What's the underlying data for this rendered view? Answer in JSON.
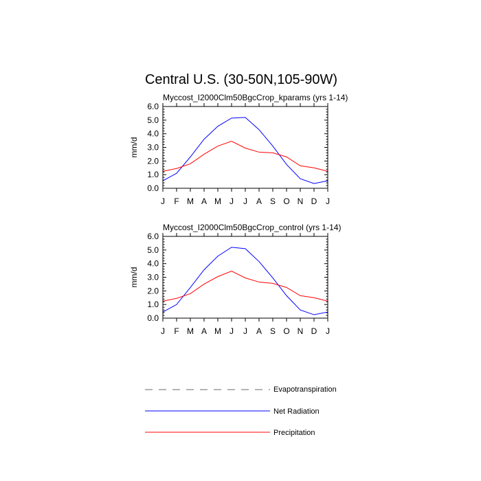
{
  "title": "Central U.S. (30-50N,105-90W)",
  "colors": {
    "net_radiation": "#0000ff",
    "precipitation": "#ff0000",
    "evapotranspiration": "#888888",
    "axes": "#000000"
  },
  "legend": {
    "items": [
      {
        "label": "Evapotranspiration",
        "style": "dashed",
        "color": "#888888"
      },
      {
        "label": "Net Radiation",
        "style": "solid",
        "color": "#0000ff"
      },
      {
        "label": "Precipitation",
        "style": "solid",
        "color": "#ff0000"
      }
    ]
  },
  "chart_data": [
    {
      "type": "line",
      "title": "Myccost_I2000Clm50BgcCrop_kparams (yrs 1-14)",
      "xlabel": "",
      "ylabel": "mm/d",
      "categories": [
        "J",
        "F",
        "M",
        "A",
        "M",
        "J",
        "J",
        "A",
        "S",
        "O",
        "N",
        "D",
        "J"
      ],
      "ylim": [
        0,
        6
      ],
      "yticks": [
        "0.0",
        "1.0",
        "2.0",
        "3.0",
        "4.0",
        "5.0",
        "6.0"
      ],
      "grid": false,
      "series": [
        {
          "name": "Net Radiation",
          "color": "#0000ff",
          "values": [
            0.55,
            1.1,
            2.3,
            3.6,
            4.55,
            5.15,
            5.2,
            4.3,
            3.1,
            1.75,
            0.7,
            0.35,
            0.55
          ]
        },
        {
          "name": "Precipitation",
          "color": "#ff0000",
          "values": [
            1.25,
            1.45,
            1.8,
            2.5,
            3.1,
            3.45,
            2.95,
            2.65,
            2.6,
            2.3,
            1.65,
            1.5,
            1.25
          ]
        }
      ]
    },
    {
      "type": "line",
      "title": "Myccost_I2000Clm50BgcCrop_control (yrs 1-14)",
      "xlabel": "",
      "ylabel": "mm/d",
      "categories": [
        "J",
        "F",
        "M",
        "A",
        "M",
        "J",
        "J",
        "A",
        "S",
        "O",
        "N",
        "D",
        "J"
      ],
      "ylim": [
        0,
        6
      ],
      "yticks": [
        "0.0",
        "1.0",
        "2.0",
        "3.0",
        "4.0",
        "5.0",
        "6.0"
      ],
      "grid": false,
      "series": [
        {
          "name": "Net Radiation",
          "color": "#0000ff",
          "values": [
            0.45,
            1.0,
            2.25,
            3.55,
            4.55,
            5.2,
            5.1,
            4.15,
            2.95,
            1.65,
            0.6,
            0.25,
            0.45
          ]
        },
        {
          "name": "Precipitation",
          "color": "#ff0000",
          "values": [
            1.25,
            1.45,
            1.8,
            2.5,
            3.05,
            3.45,
            2.95,
            2.65,
            2.55,
            2.25,
            1.65,
            1.5,
            1.25
          ]
        }
      ]
    }
  ]
}
